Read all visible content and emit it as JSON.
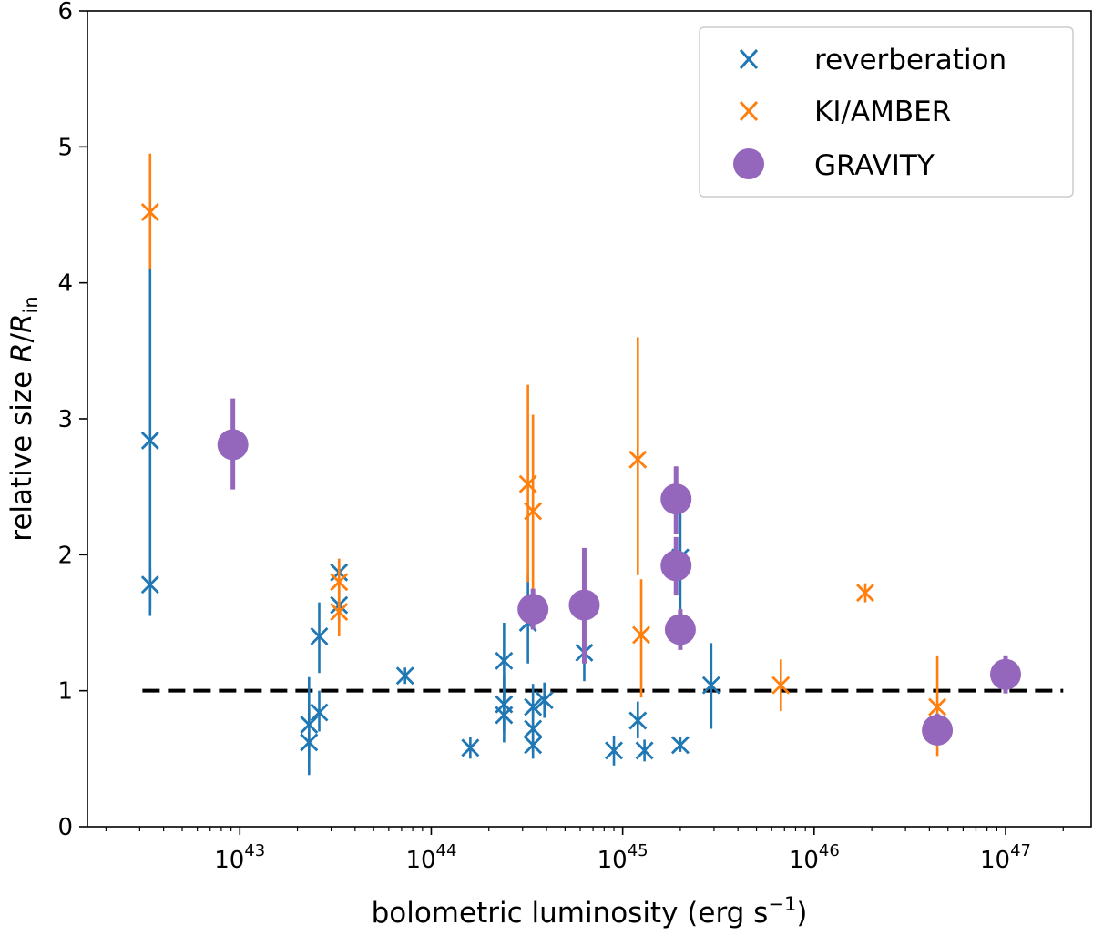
{
  "chart_data": {
    "type": "scatter",
    "title": "",
    "xlabel": {
      "prefix": "bolometric luminosity (erg s",
      "sup": "−1",
      "suffix": ")"
    },
    "ylabel": {
      "prefix": "relative size ",
      "R": "R",
      "slash": "/",
      "R2": "R",
      "sub": "in"
    },
    "xscale": "log",
    "xlim": [
      1.6e+42,
      2.8e+47
    ],
    "ylim": [
      0,
      6
    ],
    "yticks": [
      "0",
      "1",
      "2",
      "3",
      "4",
      "5",
      "6"
    ],
    "xticks": [
      {
        "base": "10",
        "exp": "43",
        "value": 1e+43
      },
      {
        "base": "10",
        "exp": "44",
        "value": 1e+44
      },
      {
        "base": "10",
        "exp": "45",
        "value": 1e+45
      },
      {
        "base": "10",
        "exp": "46",
        "value": 1e+46
      },
      {
        "base": "10",
        "exp": "47",
        "value": 1e+47
      }
    ],
    "reference_line": {
      "y": 1,
      "x_from": 3.1e+42,
      "x_to": 2e+47,
      "style": "dashed",
      "color": "#000000"
    },
    "legend": {
      "position": "top-right",
      "entries": [
        "reverberation",
        "KI/AMBER",
        "GRAVITY"
      ]
    },
    "series": [
      {
        "name": "reverberation",
        "marker": "x",
        "color": "#1f77b4",
        "points": [
          {
            "x": 3.4e+42,
            "y": 2.84,
            "lo": 1.6,
            "hi": 4.1
          },
          {
            "x": 3.4e+42,
            "y": 1.78,
            "lo": 1.55,
            "hi": 1.9
          },
          {
            "x": 2.3e+43,
            "y": 0.75,
            "lo": 0.5,
            "hi": 1.1
          },
          {
            "x": 2.3e+43,
            "y": 0.62,
            "lo": 0.38,
            "hi": 0.85
          },
          {
            "x": 2.6e+43,
            "y": 1.4,
            "lo": 1.13,
            "hi": 1.65
          },
          {
            "x": 2.6e+43,
            "y": 0.84,
            "lo": 0.7,
            "hi": 1.0
          },
          {
            "x": 3.3e+43,
            "y": 1.87,
            "lo": 1.75,
            "hi": 1.97
          },
          {
            "x": 3.3e+43,
            "y": 1.63,
            "lo": 1.5,
            "hi": 1.75
          },
          {
            "x": 7.3e+43,
            "y": 1.11,
            "lo": 1.05,
            "hi": 1.17
          },
          {
            "x": 1.6e+44,
            "y": 0.58,
            "lo": 0.5,
            "hi": 0.66
          },
          {
            "x": 2.4e+44,
            "y": 1.22,
            "lo": 0.95,
            "hi": 1.5
          },
          {
            "x": 2.4e+44,
            "y": 0.9,
            "lo": 0.7,
            "hi": 1.1
          },
          {
            "x": 2.4e+44,
            "y": 0.82,
            "lo": 0.62,
            "hi": 1.02
          },
          {
            "x": 3.2e+44,
            "y": 1.5,
            "lo": 1.2,
            "hi": 1.85
          },
          {
            "x": 3.4e+44,
            "y": 0.88,
            "lo": 0.7,
            "hi": 1.05
          },
          {
            "x": 3.4e+44,
            "y": 0.72,
            "lo": 0.55,
            "hi": 0.9
          },
          {
            "x": 3.4e+44,
            "y": 0.6,
            "lo": 0.5,
            "hi": 0.7
          },
          {
            "x": 3.9e+44,
            "y": 0.93,
            "lo": 0.8,
            "hi": 1.06
          },
          {
            "x": 6.3e+44,
            "y": 1.28,
            "lo": 1.07,
            "hi": 1.45
          },
          {
            "x": 9e+44,
            "y": 0.56,
            "lo": 0.45,
            "hi": 0.67
          },
          {
            "x": 1.2e+45,
            "y": 0.78,
            "lo": 0.65,
            "hi": 0.92
          },
          {
            "x": 1.3e+45,
            "y": 0.56,
            "lo": 0.48,
            "hi": 0.64
          },
          {
            "x": 2e+45,
            "y": 1.98,
            "lo": 1.6,
            "hi": 2.4
          },
          {
            "x": 2e+45,
            "y": 0.6,
            "lo": 0.55,
            "hi": 0.66
          },
          {
            "x": 2.9e+45,
            "y": 1.04,
            "lo": 0.72,
            "hi": 1.35
          }
        ]
      },
      {
        "name": "KI/AMBER",
        "marker": "x",
        "color": "#ff7f0e",
        "points": [
          {
            "x": 3.4e+42,
            "y": 4.52,
            "lo": 4.1,
            "hi": 4.95
          },
          {
            "x": 3.3e+43,
            "y": 1.8,
            "lo": 1.6,
            "hi": 1.97
          },
          {
            "x": 3.3e+43,
            "y": 1.58,
            "lo": 1.4,
            "hi": 1.75
          },
          {
            "x": 3.2e+44,
            "y": 2.52,
            "lo": 1.8,
            "hi": 3.25
          },
          {
            "x": 3.4e+44,
            "y": 2.32,
            "lo": 1.6,
            "hi": 3.03
          },
          {
            "x": 1.2e+45,
            "y": 2.7,
            "lo": 1.85,
            "hi": 3.6
          },
          {
            "x": 1.25e+45,
            "y": 1.41,
            "lo": 0.95,
            "hi": 1.82
          },
          {
            "x": 6.7e+45,
            "y": 1.04,
            "lo": 0.85,
            "hi": 1.23
          },
          {
            "x": 1.85e+46,
            "y": 1.72,
            "lo": 1.65,
            "hi": 1.79
          },
          {
            "x": 4.4e+46,
            "y": 0.88,
            "lo": 0.52,
            "hi": 1.26
          }
        ]
      },
      {
        "name": "GRAVITY",
        "marker": "o",
        "color": "#9467bd",
        "points": [
          {
            "x": 9.2e+42,
            "y": 2.81,
            "lo": 2.48,
            "hi": 3.15
          },
          {
            "x": 3.4e+44,
            "y": 1.6,
            "lo": 1.45,
            "hi": 1.75
          },
          {
            "x": 6.3e+44,
            "y": 1.63,
            "lo": 1.2,
            "hi": 2.05
          },
          {
            "x": 1.9e+45,
            "y": 2.41,
            "lo": 2.15,
            "hi": 2.65
          },
          {
            "x": 1.9e+45,
            "y": 1.92,
            "lo": 1.7,
            "hi": 2.13
          },
          {
            "x": 2e+45,
            "y": 1.45,
            "lo": 1.3,
            "hi": 1.6
          },
          {
            "x": 4.4e+46,
            "y": 0.71,
            "lo": 0.6,
            "hi": 0.83
          },
          {
            "x": 1e+47,
            "y": 1.12,
            "lo": 0.98,
            "hi": 1.26
          }
        ]
      }
    ]
  }
}
